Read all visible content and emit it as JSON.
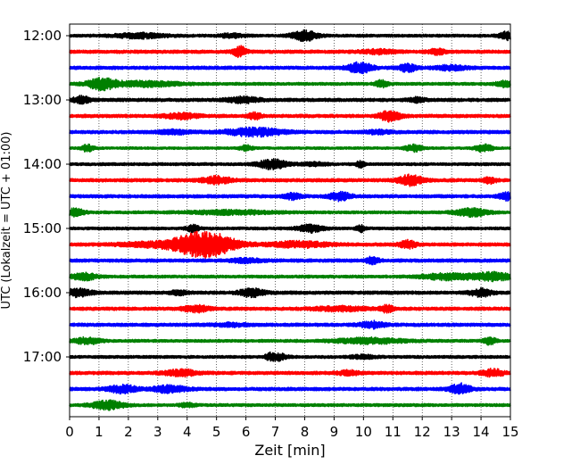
{
  "chart_data": {
    "type": "line",
    "title": "",
    "xlabel": "Zeit  [min]",
    "ylabel": "UTC (Lokalzeit = UTC + 01:00)",
    "xlim": [
      0,
      15
    ],
    "x_ticks": [
      "0",
      "1",
      "2",
      "3",
      "4",
      "5",
      "6",
      "7",
      "8",
      "9",
      "10",
      "11",
      "12",
      "13",
      "14",
      "15"
    ],
    "y_tick_labels": [
      "12:00",
      "13:00",
      "14:00",
      "15:00",
      "16:00",
      "17:00"
    ],
    "y_tick_rows": [
      0,
      4,
      8,
      12,
      16,
      20
    ],
    "grid": "vertical-dotted",
    "trace_colors": [
      "#000000",
      "#ff0000",
      "#0000ff",
      "#008000"
    ],
    "traces": [
      {
        "start": "12:00",
        "color": "#000000",
        "noise": 0.7,
        "events": [
          [
            2.4,
            0.6,
            1.1
          ],
          [
            8.0,
            0.3,
            2.4
          ],
          [
            14.9,
            0.2,
            1.8
          ],
          [
            5.5,
            0.3,
            0.8
          ]
        ]
      },
      {
        "start": "12:15",
        "color": "#ff0000",
        "noise": 0.8,
        "events": [
          [
            5.8,
            0.15,
            2.5
          ],
          [
            12.5,
            0.2,
            1.2
          ],
          [
            10.5,
            0.4,
            0.9
          ]
        ]
      },
      {
        "start": "12:30",
        "color": "#0000ff",
        "noise": 0.8,
        "events": [
          [
            9.9,
            0.3,
            2.4
          ],
          [
            11.5,
            0.2,
            1.8
          ],
          [
            13.0,
            0.4,
            1.0
          ]
        ]
      },
      {
        "start": "12:45",
        "color": "#008000",
        "noise": 0.7,
        "events": [
          [
            1.1,
            0.35,
            2.6
          ],
          [
            2.6,
            0.8,
            1.2
          ],
          [
            10.6,
            0.15,
            1.6
          ],
          [
            14.8,
            0.2,
            1.4
          ]
        ]
      },
      {
        "start": "13:00",
        "color": "#000000",
        "noise": 0.8,
        "events": [
          [
            0.4,
            0.2,
            1.6
          ],
          [
            5.9,
            0.4,
            1.3
          ],
          [
            11.8,
            0.2,
            1.0
          ]
        ]
      },
      {
        "start": "13:15",
        "color": "#ff0000",
        "noise": 0.8,
        "events": [
          [
            3.8,
            0.4,
            1.2
          ],
          [
            6.3,
            0.15,
            1.5
          ],
          [
            10.9,
            0.25,
            2.4
          ]
        ]
      },
      {
        "start": "13:30",
        "color": "#0000ff",
        "noise": 0.8,
        "events": [
          [
            6.3,
            0.7,
            1.8
          ],
          [
            3.5,
            0.4,
            0.9
          ],
          [
            10.5,
            0.3,
            0.8
          ]
        ]
      },
      {
        "start": "13:45",
        "color": "#008000",
        "noise": 0.6,
        "events": [
          [
            0.6,
            0.15,
            1.5
          ],
          [
            6.0,
            0.15,
            1.3
          ],
          [
            11.7,
            0.2,
            1.6
          ],
          [
            14.1,
            0.2,
            1.8
          ]
        ]
      },
      {
        "start": "14:00",
        "color": "#000000",
        "noise": 0.7,
        "events": [
          [
            6.9,
            0.35,
            2.2
          ],
          [
            9.9,
            0.1,
            1.4
          ],
          [
            8.3,
            0.3,
            0.8
          ]
        ]
      },
      {
        "start": "14:15",
        "color": "#ff0000",
        "noise": 0.8,
        "events": [
          [
            5.0,
            0.35,
            1.7
          ],
          [
            11.6,
            0.3,
            2.4
          ],
          [
            14.3,
            0.15,
            1.4
          ]
        ]
      },
      {
        "start": "14:30",
        "color": "#0000ff",
        "noise": 0.8,
        "events": [
          [
            7.6,
            0.2,
            1.3
          ],
          [
            9.2,
            0.25,
            2.0
          ],
          [
            14.9,
            0.2,
            1.6
          ]
        ]
      },
      {
        "start": "14:45",
        "color": "#008000",
        "noise": 0.7,
        "events": [
          [
            0.2,
            0.2,
            1.8
          ],
          [
            5.5,
            1.0,
            0.9
          ],
          [
            13.7,
            0.4,
            1.8
          ]
        ]
      },
      {
        "start": "15:00",
        "color": "#000000",
        "noise": 0.7,
        "events": [
          [
            4.2,
            0.15,
            1.6
          ],
          [
            8.2,
            0.3,
            1.7
          ],
          [
            9.9,
            0.1,
            1.5
          ]
        ]
      },
      {
        "start": "15:15",
        "color": "#ff0000",
        "noise": 0.8,
        "events": [
          [
            4.6,
            0.7,
            6.2
          ],
          [
            7.8,
            0.7,
            1.3
          ],
          [
            11.5,
            0.2,
            1.8
          ],
          [
            2.8,
            0.8,
            1.0
          ]
        ]
      },
      {
        "start": "15:30",
        "color": "#0000ff",
        "noise": 0.8,
        "events": [
          [
            10.3,
            0.15,
            1.6
          ],
          [
            6.0,
            0.4,
            0.8
          ]
        ]
      },
      {
        "start": "15:45",
        "color": "#008000",
        "noise": 0.7,
        "events": [
          [
            0.5,
            0.3,
            1.6
          ],
          [
            12.8,
            0.6,
            1.4
          ],
          [
            14.4,
            0.5,
            1.9
          ]
        ]
      },
      {
        "start": "16:00",
        "color": "#000000",
        "noise": 0.8,
        "events": [
          [
            0.3,
            0.3,
            1.8
          ],
          [
            6.2,
            0.3,
            1.8
          ],
          [
            14.0,
            0.25,
            1.8
          ],
          [
            3.7,
            0.2,
            0.9
          ]
        ]
      },
      {
        "start": "16:15",
        "color": "#ff0000",
        "noise": 0.8,
        "events": [
          [
            4.3,
            0.3,
            1.6
          ],
          [
            9.2,
            0.6,
            1.0
          ],
          [
            10.8,
            0.15,
            1.6
          ]
        ]
      },
      {
        "start": "16:30",
        "color": "#0000ff",
        "noise": 0.8,
        "events": [
          [
            10.3,
            0.3,
            1.5
          ],
          [
            5.5,
            0.4,
            0.7
          ]
        ]
      },
      {
        "start": "16:45",
        "color": "#008000",
        "noise": 0.7,
        "events": [
          [
            0.6,
            0.3,
            1.5
          ],
          [
            10.2,
            0.8,
            1.3
          ],
          [
            14.3,
            0.15,
            1.6
          ]
        ]
      },
      {
        "start": "17:00",
        "color": "#000000",
        "noise": 0.7,
        "events": [
          [
            7.1,
            0.2,
            1.6
          ],
          [
            6.8,
            0.1,
            1.2
          ],
          [
            10.0,
            0.3,
            0.8
          ]
        ]
      },
      {
        "start": "17:15",
        "color": "#ff0000",
        "noise": 0.8,
        "events": [
          [
            3.8,
            0.4,
            1.4
          ],
          [
            9.5,
            0.25,
            1.0
          ],
          [
            14.4,
            0.25,
            1.7
          ]
        ]
      },
      {
        "start": "17:30",
        "color": "#0000ff",
        "noise": 0.8,
        "events": [
          [
            1.8,
            0.35,
            1.8
          ],
          [
            3.4,
            0.4,
            1.6
          ],
          [
            13.3,
            0.25,
            2.4
          ]
        ]
      },
      {
        "start": "17:45",
        "color": "#008000",
        "noise": 0.7,
        "events": [
          [
            1.3,
            0.4,
            2.0
          ],
          [
            4.0,
            0.2,
            0.9
          ]
        ]
      }
    ]
  }
}
